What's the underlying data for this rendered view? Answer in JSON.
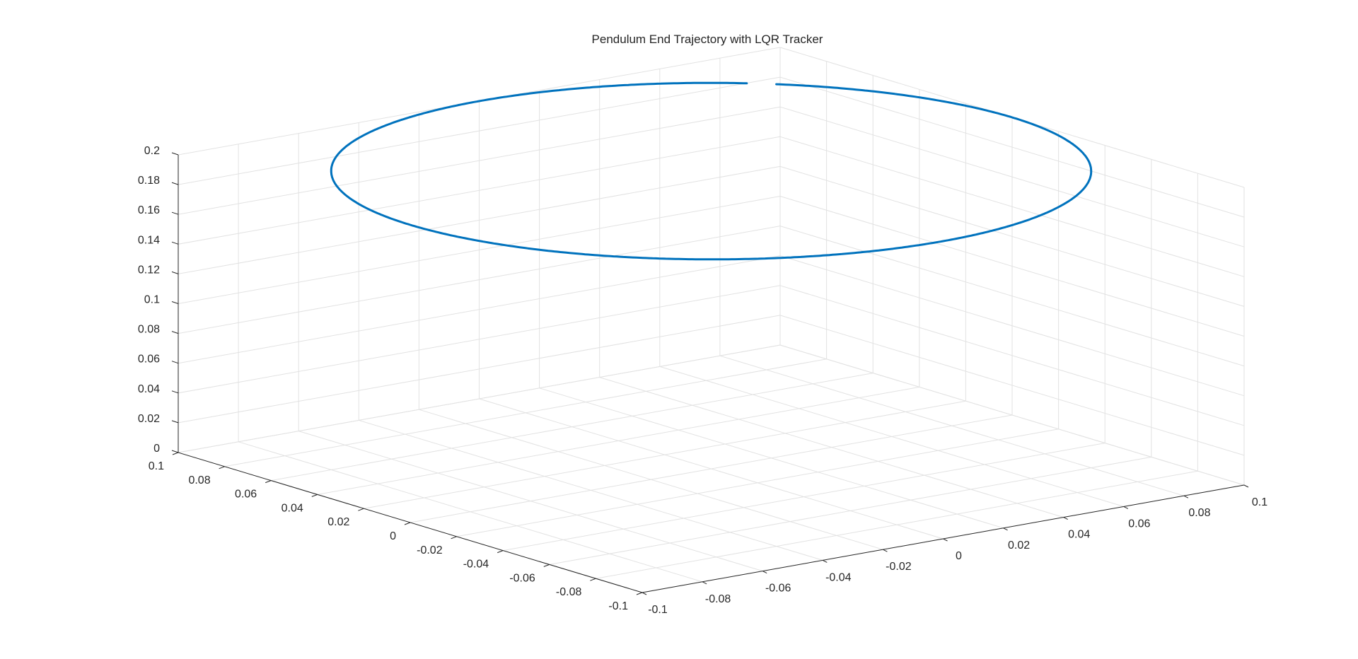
{
  "chart_data": {
    "type": "line3d",
    "title": "Pendulum End Trajectory with LQR Tracker",
    "xlabel": "",
    "ylabel": "",
    "zlabel": "",
    "xlim": [
      -0.1,
      0.1
    ],
    "ylim": [
      -0.1,
      0.1
    ],
    "zlim": [
      0,
      0.2
    ],
    "x_ticks": [
      -0.1,
      -0.08,
      -0.06,
      -0.04,
      -0.02,
      0,
      0.02,
      0.04,
      0.06,
      0.08,
      0.1
    ],
    "x_tick_labels": [
      "-0.1",
      "-0.08",
      "-0.06",
      "-0.04",
      "-0.02",
      "0",
      "0.02",
      "0.04",
      "0.06",
      "0.08",
      "0.1"
    ],
    "y_ticks": [
      -0.1,
      -0.08,
      -0.06,
      -0.04,
      -0.02,
      0,
      0.02,
      0.04,
      0.06,
      0.08,
      0.1
    ],
    "y_tick_labels": [
      "-0.1",
      "-0.08",
      "-0.06",
      "-0.04",
      "-0.02",
      "0",
      "0.02",
      "0.04",
      "0.06",
      "0.08",
      "0.1"
    ],
    "z_ticks": [
      0,
      0.02,
      0.04,
      0.06,
      0.08,
      0.1,
      0.12,
      0.14,
      0.16,
      0.18,
      0.2
    ],
    "z_tick_labels": [
      "0",
      "0.02",
      "0.04",
      "0.06",
      "0.08",
      "0.1",
      "0.12",
      "0.14",
      "0.16",
      "0.18",
      "0.2"
    ],
    "grid": true,
    "view": "default 3-D view (az -37.5, el 30)",
    "series": [
      {
        "color": "#0072BD",
        "trajectory": "circle of radius 0.1 about the origin at constant height z = 0.2",
        "center": [
          0,
          0,
          0.2
        ],
        "radius": 0.1,
        "z": 0.2,
        "gap_near": [
          0.1,
          0.1,
          0.2
        ]
      }
    ]
  }
}
